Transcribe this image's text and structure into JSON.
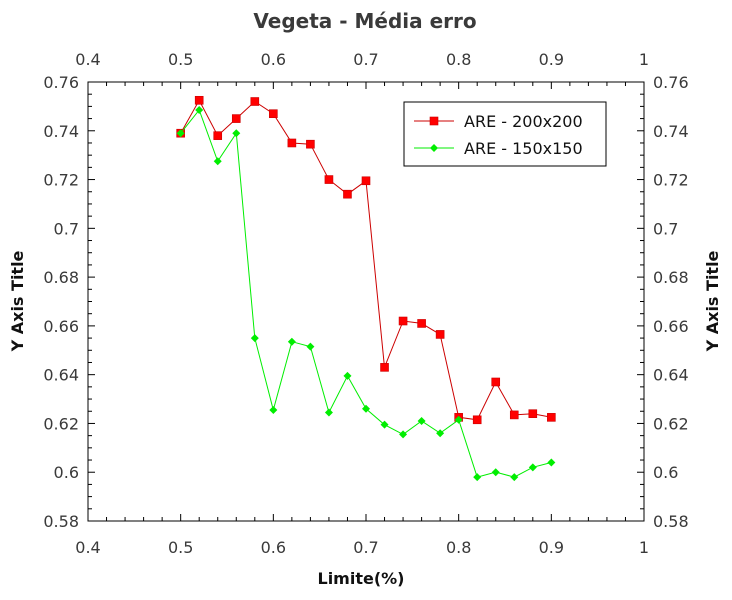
{
  "chart_data": {
    "type": "line",
    "title": "Vegeta - Média erro",
    "xlabel": "Limite(%)",
    "ylabel": "Y Axis Title",
    "ylabel_right": "Y Axis Title",
    "xlim": [
      0.4,
      1.0
    ],
    "ylim": [
      0.58,
      0.76
    ],
    "x_ticks": [
      "0.4",
      "0.5",
      "0.6",
      "0.7",
      "0.8",
      "0.9",
      "1"
    ],
    "y_ticks": [
      "0.58",
      "0.6",
      "0.62",
      "0.64",
      "0.66",
      "0.68",
      "0.7",
      "0.72",
      "0.74",
      "0.76"
    ],
    "grid": false,
    "legend_position": "top-right",
    "series": [
      {
        "name": "ARE - 200x200",
        "color": "#ff0000",
        "line_color": "#cc0000",
        "marker": "square",
        "x": [
          0.5,
          0.52,
          0.54,
          0.56,
          0.58,
          0.6,
          0.62,
          0.64,
          0.66,
          0.68,
          0.7,
          0.72,
          0.74,
          0.76,
          0.78,
          0.8,
          0.82,
          0.84,
          0.86,
          0.88,
          0.9
        ],
        "y": [
          0.739,
          0.7525,
          0.738,
          0.745,
          0.752,
          0.747,
          0.735,
          0.7345,
          0.72,
          0.714,
          0.7195,
          0.643,
          0.662,
          0.661,
          0.6565,
          0.6225,
          0.6215,
          0.637,
          0.6235,
          0.624,
          0.6225
        ]
      },
      {
        "name": "ARE - 150x150",
        "color": "#00ee00",
        "line_color": "#00ee00",
        "marker": "diamond",
        "x": [
          0.5,
          0.52,
          0.54,
          0.56,
          0.58,
          0.6,
          0.62,
          0.64,
          0.66,
          0.68,
          0.7,
          0.72,
          0.74,
          0.76,
          0.78,
          0.8,
          0.82,
          0.84,
          0.86,
          0.88,
          0.9
        ],
        "y": [
          0.739,
          0.7485,
          0.7275,
          0.739,
          0.655,
          0.6255,
          0.6535,
          0.6515,
          0.6245,
          0.6395,
          0.626,
          0.6195,
          0.6155,
          0.621,
          0.616,
          0.6215,
          0.598,
          0.6,
          0.598,
          0.602,
          0.604
        ]
      }
    ]
  }
}
